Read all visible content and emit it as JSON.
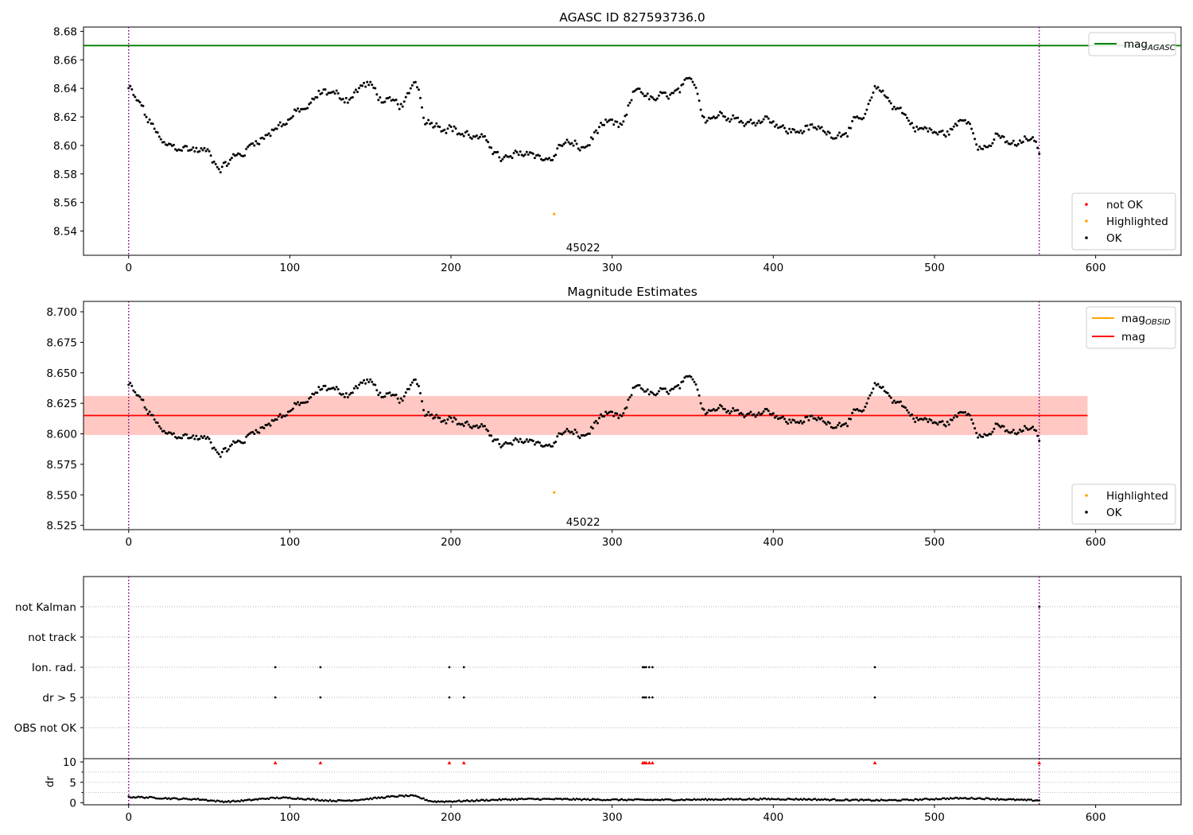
{
  "chart_data": [
    {
      "type": "scatter",
      "title": "AGASC ID 827593736.0",
      "xlim": [
        -28,
        653
      ],
      "ylim": [
        8.523,
        8.683
      ],
      "xticks": [
        0,
        100,
        200,
        300,
        400,
        500,
        600
      ],
      "yticks": [
        8.54,
        8.56,
        8.58,
        8.6,
        8.62,
        8.64,
        8.66,
        8.68
      ],
      "hlines": [
        {
          "name": "mag_AGASC",
          "y": 8.67,
          "color": "#008000",
          "x_range": [
            -28,
            653
          ]
        }
      ],
      "vlines": [
        0,
        565
      ],
      "annotations": [
        {
          "text": "45022",
          "x": 282,
          "y": 8.5285
        }
      ],
      "highlighted_points": [
        {
          "x": 264,
          "y": 8.552
        }
      ],
      "ok_series_model": {
        "n_points": 566,
        "x_range": [
          0,
          565
        ],
        "knots": [
          [
            0,
            8.64
          ],
          [
            6,
            8.63
          ],
          [
            14,
            8.615
          ],
          [
            22,
            8.6
          ],
          [
            35,
            8.598
          ],
          [
            48,
            8.596
          ],
          [
            57,
            8.585
          ],
          [
            68,
            8.593
          ],
          [
            82,
            8.605
          ],
          [
            95,
            8.615
          ],
          [
            108,
            8.625
          ],
          [
            122,
            8.638
          ],
          [
            135,
            8.633
          ],
          [
            148,
            8.643
          ],
          [
            160,
            8.63
          ],
          [
            170,
            8.628
          ],
          [
            178,
            8.645
          ],
          [
            185,
            8.617
          ],
          [
            198,
            8.613
          ],
          [
            208,
            8.608
          ],
          [
            222,
            8.603
          ],
          [
            232,
            8.59
          ],
          [
            248,
            8.595
          ],
          [
            262,
            8.59
          ],
          [
            270,
            8.602
          ],
          [
            282,
            8.598
          ],
          [
            295,
            8.615
          ],
          [
            305,
            8.613
          ],
          [
            316,
            8.64
          ],
          [
            325,
            8.632
          ],
          [
            338,
            8.636
          ],
          [
            350,
            8.645
          ],
          [
            358,
            8.62
          ],
          [
            372,
            8.622
          ],
          [
            385,
            8.615
          ],
          [
            395,
            8.62
          ],
          [
            410,
            8.61
          ],
          [
            425,
            8.612
          ],
          [
            440,
            8.608
          ],
          [
            455,
            8.618
          ],
          [
            465,
            8.64
          ],
          [
            475,
            8.628
          ],
          [
            490,
            8.612
          ],
          [
            505,
            8.608
          ],
          [
            520,
            8.618
          ],
          [
            530,
            8.598
          ],
          [
            540,
            8.605
          ],
          [
            550,
            8.6
          ],
          [
            560,
            8.605
          ],
          [
            565,
            8.595
          ]
        ],
        "noise_amplitude": 0.0045
      },
      "legends": [
        {
          "position": "upper-right",
          "entries": [
            {
              "label": "mag",
              "sub": "AGASC",
              "kind": "line",
              "color": "#008000"
            }
          ]
        },
        {
          "position": "lower-right",
          "entries": [
            {
              "label": "not OK",
              "kind": "point",
              "color": "#ff0000"
            },
            {
              "label": "Highlighted",
              "kind": "point",
              "color": "#ffa500"
            },
            {
              "label": "OK",
              "kind": "point",
              "color": "#000000"
            }
          ]
        }
      ]
    },
    {
      "type": "scatter",
      "title": "Magnitude Estimates",
      "xlim": [
        -28,
        653
      ],
      "ylim": [
        8.5215,
        8.7085
      ],
      "xticks": [
        0,
        100,
        200,
        300,
        400,
        500,
        600
      ],
      "yticks": [
        8.525,
        8.55,
        8.575,
        8.6,
        8.625,
        8.65,
        8.675,
        8.7
      ],
      "bands": [
        {
          "name": "mag_OBSID",
          "y_range": [
            8.599,
            8.631
          ],
          "x_range": [
            -28,
            595
          ],
          "color": "#ffa07a",
          "opacity": 0.45
        },
        {
          "name": "mag",
          "y_range": [
            8.599,
            8.631
          ],
          "x_range": [
            -28,
            595
          ],
          "color": "#ffb6c1",
          "opacity": 0.38
        }
      ],
      "hlines": [
        {
          "name": "mag",
          "y": 8.615,
          "color": "#ff0000",
          "x_range": [
            -28,
            595
          ]
        }
      ],
      "vlines": [
        0,
        565
      ],
      "annotations": [
        {
          "text": "45022",
          "x": 282,
          "y": 8.528
        }
      ],
      "highlighted_points": [
        {
          "x": 264,
          "y": 8.552
        }
      ],
      "ok_series_same_as_panel": 0,
      "legends": [
        {
          "position": "upper-right",
          "entries": [
            {
              "label": "mag",
              "sub": "OBSID",
              "kind": "line",
              "color": "#ffa500"
            },
            {
              "label": "mag",
              "kind": "line",
              "color": "#ff0000"
            }
          ]
        },
        {
          "position": "lower-right",
          "entries": [
            {
              "label": "Highlighted",
              "kind": "point",
              "color": "#ffa500"
            },
            {
              "label": "OK",
              "kind": "point",
              "color": "#000000"
            }
          ]
        }
      ]
    },
    {
      "type": "scatter",
      "title": "",
      "xlim": [
        -28,
        653
      ],
      "categories": [
        "not Kalman",
        "not track",
        "Ion. rad.",
        "dr > 5",
        "OBS not OK"
      ],
      "flag_points": {
        "not Kalman": [
          565
        ],
        "not track": [],
        "Ion. rad.": [
          91,
          119,
          199,
          208,
          319,
          320,
          321,
          323,
          325,
          463
        ],
        "dr > 5": [
          91,
          119,
          199,
          208,
          319,
          320,
          321,
          323,
          325,
          463
        ],
        "OBS not OK": []
      }
    },
    {
      "type": "scatter",
      "title": "",
      "ylabel": "dr",
      "xlim": [
        -28,
        653
      ],
      "ylim": [
        -0.5,
        10.8
      ],
      "yticks": [
        0,
        5,
        10
      ],
      "xticks": [
        0,
        100,
        200,
        300,
        400,
        500,
        600
      ],
      "vlines": [
        0,
        565
      ],
      "clipped_markers": {
        "y": 9.8,
        "color": "#ff0000",
        "x": [
          91,
          119,
          199,
          208,
          319,
          320,
          321,
          323,
          325,
          463,
          565
        ]
      },
      "dr_series_model": {
        "n_points": 566,
        "x_range": [
          0,
          565
        ],
        "knots": [
          [
            0,
            1.4
          ],
          [
            40,
            0.9
          ],
          [
            60,
            0.3
          ],
          [
            95,
            1.2
          ],
          [
            130,
            0.5
          ],
          [
            175,
            1.7
          ],
          [
            190,
            0.3
          ],
          [
            250,
            0.9
          ],
          [
            320,
            0.7
          ],
          [
            400,
            0.9
          ],
          [
            470,
            0.6
          ],
          [
            520,
            1.1
          ],
          [
            565,
            0.6
          ]
        ]
      }
    }
  ]
}
